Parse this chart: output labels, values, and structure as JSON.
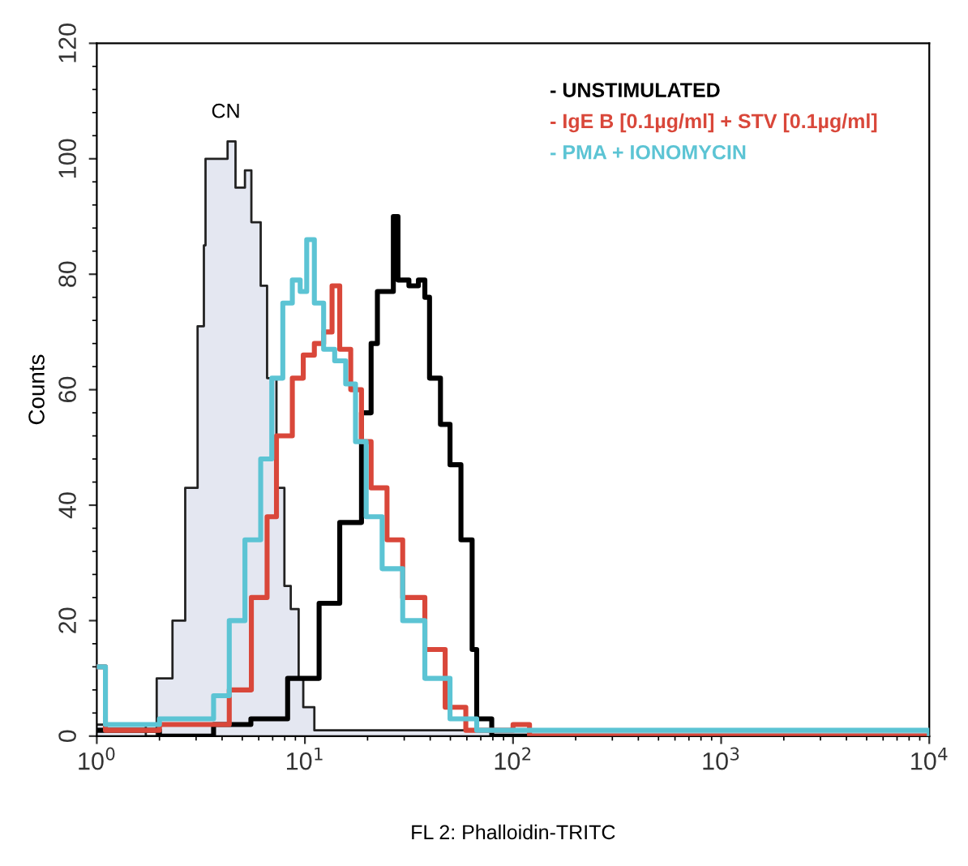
{
  "chart_data": {
    "type": "step",
    "xlabel": "FL 2: Phalloidin-TRITC",
    "ylabel": "Counts",
    "log": "x",
    "xlim": [
      1,
      10000
    ],
    "ylim": [
      0,
      120
    ],
    "xticks": [
      {
        "value": 1,
        "label": "10$^{0}$"
      },
      {
        "value": 10,
        "label": "10$^{1}$"
      },
      {
        "value": 100,
        "label": "10$^{2}$"
      },
      {
        "value": 1000,
        "label": "10$^{3}$"
      },
      {
        "value": 10000,
        "label": "10$^{4}$"
      }
    ],
    "yticks": [
      0,
      20,
      40,
      60,
      80,
      100,
      120
    ],
    "legend": "top right",
    "annotations": [
      "CN"
    ],
    "series": [
      {
        "type": "area",
        "color": "#e4e7f1",
        "x": [
          1,
          1.72,
          1.94,
          2.31,
          2.66,
          3.05,
          3.27,
          3.33,
          3.64,
          4.25,
          4.64,
          5.15,
          5.53,
          6.13,
          6.58,
          7.3,
          7.97,
          8.55,
          9.33,
          9.82,
          11.1,
          10000
        ],
        "values": [
          2,
          0,
          10,
          20,
          43,
          71,
          85,
          100,
          100,
          103,
          95,
          98,
          89,
          78,
          62,
          43,
          26,
          22,
          10,
          5,
          1,
          0
        ]
      },
      {
        "name": "- UNSTIMULATED",
        "color": "#000000",
        "x": [
          1,
          2,
          3.64,
          5.5,
          8.26,
          11.7,
          14.7,
          18.7,
          20.8,
          22.3,
          26.6,
          28,
          31.6,
          35.1,
          37.7,
          39.7,
          44.8,
          49.8,
          56.2,
          63.6,
          66.9,
          79,
          10000
        ],
        "values": [
          1,
          0,
          2,
          3,
          10,
          23,
          37,
          56,
          68,
          77,
          90,
          79,
          78,
          79,
          76,
          62,
          54,
          47,
          34,
          15,
          3,
          0,
          0
        ]
      },
      {
        "name": "- IgE B [0.1µg/ml] + STV [0.1µg/ml]",
        "color": "#d9473a",
        "x": [
          1,
          1.1,
          2,
          4.33,
          5.53,
          6.58,
          7.3,
          8.7,
          9.82,
          11.1,
          12.3,
          13.5,
          14.7,
          16.6,
          18.7,
          20.8,
          24.8,
          29.5,
          37.7,
          47.2,
          59.3,
          100,
          120,
          10000
        ],
        "values": [
          12,
          1,
          2,
          8,
          24,
          38,
          52,
          62,
          66,
          68,
          70,
          78,
          67,
          60,
          51,
          43,
          34,
          24,
          15,
          5,
          1,
          2,
          0,
          0
        ]
      },
      {
        "name": "- PMA + IONOMYCIN",
        "color": "#5cc4d4",
        "x": [
          1,
          1.1,
          2,
          3.64,
          4.33,
          5.15,
          6.13,
          6.93,
          7.83,
          8.7,
          9.49,
          10.2,
          11.1,
          12.3,
          13.9,
          15.7,
          17.5,
          19.7,
          23.5,
          29.5,
          37.7,
          49.8,
          66.9,
          10000
        ],
        "values": [
          12,
          2,
          3,
          7,
          20,
          34,
          48,
          62,
          75,
          79,
          77,
          86,
          75,
          67,
          65,
          61,
          51,
          38,
          29,
          20,
          10,
          3,
          1,
          0
        ]
      }
    ]
  }
}
